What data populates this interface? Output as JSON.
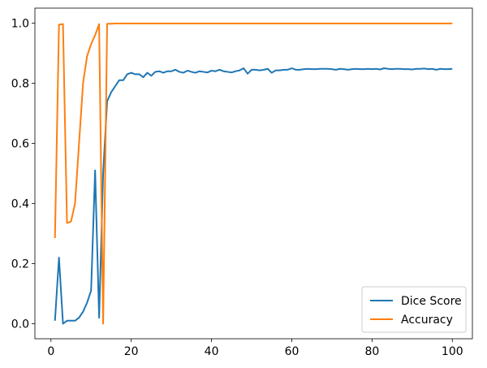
{
  "chart_data": {
    "type": "line",
    "title": "",
    "xlabel": "",
    "ylabel": "",
    "xlim": [
      -4,
      105
    ],
    "ylim": [
      -0.05,
      1.05
    ],
    "xticks": [
      0,
      20,
      40,
      60,
      80,
      100
    ],
    "yticks": [
      0.0,
      0.2,
      0.4,
      0.6,
      0.8,
      1.0
    ],
    "xtick_labels": [
      "0",
      "20",
      "40",
      "60",
      "80",
      "100"
    ],
    "ytick_labels": [
      "0.0",
      "0.2",
      "0.4",
      "0.6",
      "0.8",
      "1.0"
    ],
    "grid": false,
    "legend_position": "lower-right",
    "series": [
      {
        "name": "Dice Score",
        "color": "#1f77b4",
        "x": [
          1,
          2,
          3,
          4,
          5,
          6,
          7,
          8,
          9,
          10,
          11,
          12,
          13,
          14,
          15,
          16,
          17,
          18,
          19,
          20,
          21,
          22,
          23,
          24,
          25,
          26,
          27,
          28,
          29,
          30,
          31,
          32,
          33,
          34,
          35,
          36,
          37,
          38,
          39,
          40,
          41,
          42,
          43,
          44,
          45,
          46,
          47,
          48,
          49,
          50,
          51,
          52,
          53,
          54,
          55,
          56,
          57,
          58,
          59,
          60,
          61,
          62,
          63,
          64,
          65,
          66,
          67,
          68,
          69,
          70,
          71,
          72,
          73,
          74,
          75,
          76,
          77,
          78,
          79,
          80,
          81,
          82,
          83,
          84,
          85,
          86,
          87,
          88,
          89,
          90,
          91,
          92,
          93,
          94,
          95,
          96,
          97,
          98,
          99,
          100
        ],
        "y": [
          0.01,
          0.22,
          0.0,
          0.01,
          0.01,
          0.01,
          0.02,
          0.04,
          0.07,
          0.11,
          0.51,
          0.02,
          0.5,
          0.74,
          0.77,
          0.79,
          0.81,
          0.81,
          0.83,
          0.835,
          0.83,
          0.83,
          0.82,
          0.835,
          0.825,
          0.838,
          0.84,
          0.835,
          0.84,
          0.84,
          0.845,
          0.838,
          0.835,
          0.842,
          0.838,
          0.835,
          0.84,
          0.838,
          0.836,
          0.842,
          0.84,
          0.845,
          0.84,
          0.838,
          0.836,
          0.84,
          0.843,
          0.85,
          0.832,
          0.845,
          0.845,
          0.843,
          0.845,
          0.848,
          0.835,
          0.843,
          0.843,
          0.845,
          0.845,
          0.85,
          0.845,
          0.845,
          0.847,
          0.848,
          0.847,
          0.847,
          0.848,
          0.848,
          0.848,
          0.847,
          0.845,
          0.848,
          0.847,
          0.845,
          0.847,
          0.848,
          0.847,
          0.847,
          0.848,
          0.847,
          0.848,
          0.846,
          0.85,
          0.848,
          0.847,
          0.848,
          0.848,
          0.847,
          0.847,
          0.846,
          0.848,
          0.848,
          0.849,
          0.847,
          0.848,
          0.845,
          0.848,
          0.847,
          0.847,
          0.848
        ]
      },
      {
        "name": "Accuracy",
        "color": "#ff7f0e",
        "x": [
          1,
          2,
          3,
          4,
          5,
          6,
          7,
          8,
          9,
          10,
          11,
          12,
          13,
          14,
          15,
          16,
          17,
          18,
          19,
          20,
          21,
          22,
          23,
          24,
          25,
          26,
          27,
          28,
          29,
          30,
          31,
          32,
          33,
          34,
          35,
          36,
          37,
          38,
          39,
          40,
          41,
          42,
          43,
          44,
          45,
          46,
          47,
          48,
          49,
          50,
          51,
          52,
          53,
          54,
          55,
          56,
          57,
          58,
          59,
          60,
          61,
          62,
          63,
          64,
          65,
          66,
          67,
          68,
          69,
          70,
          71,
          72,
          73,
          74,
          75,
          76,
          77,
          78,
          79,
          80,
          81,
          82,
          83,
          84,
          85,
          86,
          87,
          88,
          89,
          90,
          91,
          92,
          93,
          94,
          95,
          96,
          97,
          98,
          99,
          100
        ],
        "y": [
          0.285,
          0.995,
          0.997,
          0.335,
          0.34,
          0.4,
          0.6,
          0.8,
          0.89,
          0.93,
          0.96,
          0.997,
          0.0,
          0.998,
          0.998,
          0.999,
          0.999,
          0.999,
          0.999,
          0.999,
          0.999,
          0.999,
          0.999,
          0.999,
          0.999,
          0.999,
          0.999,
          0.999,
          0.999,
          0.999,
          0.999,
          0.999,
          0.999,
          0.999,
          0.999,
          0.999,
          0.999,
          0.999,
          0.999,
          0.999,
          0.999,
          0.999,
          0.999,
          0.999,
          0.999,
          0.999,
          0.999,
          0.999,
          0.999,
          0.999,
          0.999,
          0.999,
          0.999,
          0.999,
          0.999,
          0.999,
          0.999,
          0.999,
          0.999,
          0.999,
          0.999,
          0.999,
          0.999,
          0.999,
          0.999,
          0.999,
          0.999,
          0.999,
          0.999,
          0.999,
          0.999,
          0.999,
          0.999,
          0.999,
          0.999,
          0.999,
          0.999,
          0.999,
          0.999,
          0.999,
          0.999,
          0.999,
          0.999,
          0.999,
          0.999,
          0.999,
          0.999,
          0.999,
          0.999,
          0.999,
          0.999,
          0.999,
          0.999,
          0.999,
          0.999,
          0.999,
          0.999,
          0.999,
          0.999,
          0.999
        ]
      }
    ]
  }
}
